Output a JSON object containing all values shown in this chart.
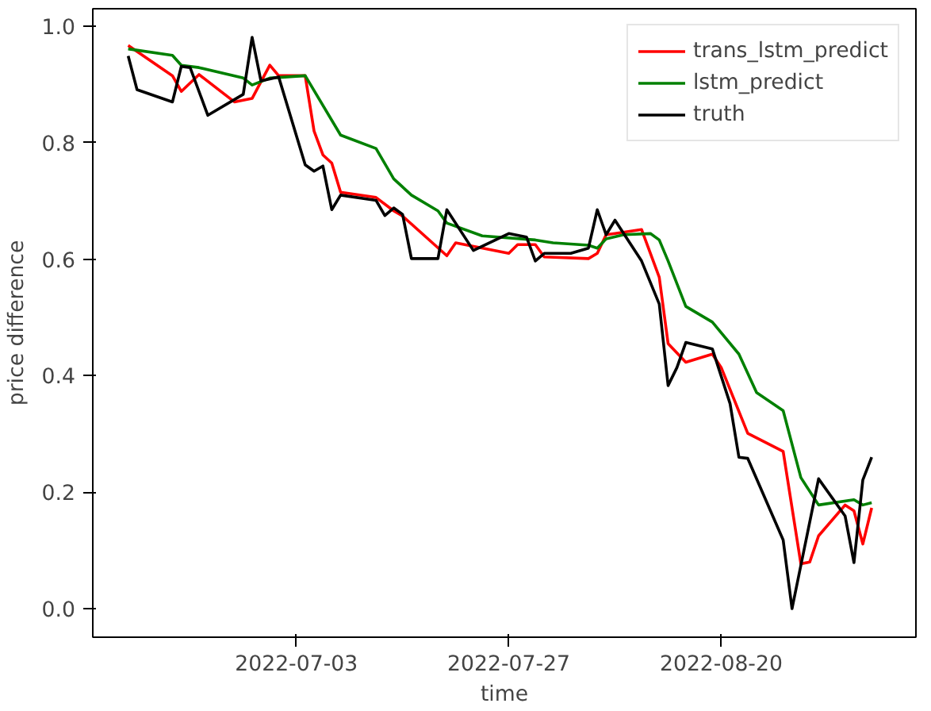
{
  "chart_data": {
    "type": "line",
    "xlabel": "time",
    "ylabel": "price difference",
    "xlim": [
      "2022-06-10",
      "2022-09-11"
    ],
    "ylim": [
      -0.049,
      1.03
    ],
    "xticks": [
      "2022-07-03",
      "2022-07-27",
      "2022-08-20"
    ],
    "yticks": [
      {
        "value": 0,
        "label": "0.0"
      },
      {
        "value": 0.2,
        "label": "0.2"
      },
      {
        "value": 0.4,
        "label": "0.4"
      },
      {
        "value": 0.6,
        "label": "0.6"
      },
      {
        "value": 0.8,
        "label": "0.8"
      },
      {
        "value": 1,
        "label": "1.0"
      }
    ],
    "grid": false,
    "legend": "top right",
    "marker": "none",
    "line_style": "solid",
    "series": [
      {
        "name": "trans_lstm_predict",
        "color": "#ff0000",
        "x": [
          "2022-06-14",
          "2022-06-19",
          "2022-06-20",
          "2022-06-22",
          "2022-06-26",
          "2022-06-28",
          "2022-06-30",
          "2022-07-01",
          "2022-07-04",
          "2022-07-05",
          "2022-07-06",
          "2022-07-07",
          "2022-07-08",
          "2022-07-12",
          "2022-07-14",
          "2022-07-15",
          "2022-07-20",
          "2022-07-21",
          "2022-07-27",
          "2022-07-28",
          "2022-07-30",
          "2022-07-31",
          "2022-08-05",
          "2022-08-06",
          "2022-08-07",
          "2022-08-08",
          "2022-08-11",
          "2022-08-13",
          "2022-08-14",
          "2022-08-16",
          "2022-08-19",
          "2022-08-20",
          "2022-08-23",
          "2022-08-27",
          "2022-08-29",
          "2022-08-30",
          "2022-08-31",
          "2022-09-03",
          "2022-09-04",
          "2022-09-05",
          "2022-09-06"
        ],
        "values": [
          0.967,
          0.915,
          0.888,
          0.917,
          0.87,
          0.876,
          0.933,
          0.915,
          0.915,
          0.82,
          0.779,
          0.765,
          0.715,
          0.706,
          0.683,
          0.674,
          0.606,
          0.628,
          0.61,
          0.625,
          0.625,
          0.604,
          0.601,
          0.61,
          0.642,
          0.644,
          0.651,
          0.569,
          0.455,
          0.423,
          0.437,
          0.414,
          0.301,
          0.27,
          0.077,
          0.08,
          0.125,
          0.178,
          0.168,
          0.111,
          0.173
        ]
      },
      {
        "name": "lstm_predict",
        "color": "#008000",
        "x": [
          "2022-06-14",
          "2022-06-19",
          "2022-06-20",
          "2022-06-22",
          "2022-06-27",
          "2022-06-28",
          "2022-06-30",
          "2022-07-04",
          "2022-07-08",
          "2022-07-12",
          "2022-07-14",
          "2022-07-16",
          "2022-07-19",
          "2022-07-20",
          "2022-07-24",
          "2022-07-30",
          "2022-08-01",
          "2022-08-05",
          "2022-08-06",
          "2022-08-07",
          "2022-08-09",
          "2022-08-12",
          "2022-08-13",
          "2022-08-14",
          "2022-08-16",
          "2022-08-19",
          "2022-08-22",
          "2022-08-24",
          "2022-08-27",
          "2022-08-29",
          "2022-08-31",
          "2022-09-04",
          "2022-09-05",
          "2022-09-06"
        ],
        "values": [
          0.961,
          0.95,
          0.933,
          0.929,
          0.911,
          0.899,
          0.911,
          0.915,
          0.813,
          0.79,
          0.738,
          0.71,
          0.683,
          0.662,
          0.64,
          0.633,
          0.628,
          0.624,
          0.619,
          0.635,
          0.642,
          0.644,
          0.633,
          0.597,
          0.519,
          0.492,
          0.437,
          0.371,
          0.34,
          0.225,
          0.178,
          0.187,
          0.178,
          0.182
        ]
      },
      {
        "name": "truth",
        "color": "#000000",
        "x": [
          "2022-06-14",
          "2022-06-15",
          "2022-06-19",
          "2022-06-20",
          "2022-06-21",
          "2022-06-23",
          "2022-06-27",
          "2022-06-28",
          "2022-06-29",
          "2022-07-01",
          "2022-07-04",
          "2022-07-05",
          "2022-07-06",
          "2022-07-07",
          "2022-07-08",
          "2022-07-12",
          "2022-07-13",
          "2022-07-14",
          "2022-07-15",
          "2022-07-16",
          "2022-07-19",
          "2022-07-20",
          "2022-07-23",
          "2022-07-27",
          "2022-07-29",
          "2022-07-30",
          "2022-07-31",
          "2022-08-03",
          "2022-08-05",
          "2022-08-06",
          "2022-08-07",
          "2022-08-08",
          "2022-08-11",
          "2022-08-13",
          "2022-08-14",
          "2022-08-15",
          "2022-08-16",
          "2022-08-19",
          "2022-08-21",
          "2022-08-22",
          "2022-08-23",
          "2022-08-27",
          "2022-08-28",
          "2022-08-31",
          "2022-09-03",
          "2022-09-04",
          "2022-09-05",
          "2022-09-06"
        ],
        "values": [
          0.949,
          0.891,
          0.87,
          0.931,
          0.929,
          0.847,
          0.883,
          0.981,
          0.906,
          0.913,
          0.762,
          0.751,
          0.76,
          0.685,
          0.71,
          0.701,
          0.675,
          0.688,
          0.677,
          0.601,
          0.601,
          0.685,
          0.615,
          0.644,
          0.638,
          0.597,
          0.61,
          0.61,
          0.619,
          0.685,
          0.642,
          0.667,
          0.597,
          0.523,
          0.383,
          0.414,
          0.457,
          0.446,
          0.352,
          0.26,
          0.258,
          0.118,
          0.0,
          0.223,
          0.159,
          0.079,
          0.221,
          0.26
        ]
      }
    ]
  }
}
